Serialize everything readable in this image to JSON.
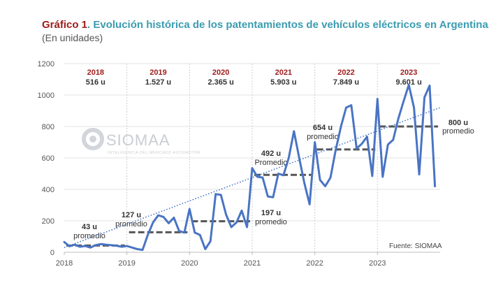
{
  "header": {
    "title_prefix": "Gráfico 1",
    "title_main": ". Evolución histórica de los patentamientos de vehículos eléctricos en Argentina.",
    "subtitle": "(En unidades)"
  },
  "watermark": {
    "name": "SIOMAA",
    "tagline": "INTELIGENCIA DEL MERCADO AUTOMOTOR"
  },
  "colors": {
    "line": "#4a74c4",
    "trend": "#3b6fc2",
    "average": "#555555",
    "year_label": "#a01c1c",
    "title_accent": "#3a9cb0",
    "grid": "#e3e3e3"
  },
  "chart_data": {
    "type": "line",
    "title": "",
    "xlabel": "",
    "ylabel": "",
    "ylim": [
      0,
      1200
    ],
    "yticks": [
      0,
      200,
      400,
      600,
      800,
      1000,
      1200
    ],
    "xlim": [
      2018,
      2024
    ],
    "xticks": [
      2018,
      2019,
      2020,
      2021,
      2022,
      2023
    ],
    "grid": true,
    "year_boxes": [
      {
        "year": "2018",
        "total": "516 u"
      },
      {
        "year": "2019",
        "total": "1.527 u"
      },
      {
        "year": "2020",
        "total": "2.365 u"
      },
      {
        "year": "2021",
        "total": "5.903 u"
      },
      {
        "year": "2022",
        "total": "7.849 u"
      },
      {
        "year": "2023",
        "total": "9.601 u"
      }
    ],
    "averages": [
      {
        "year": 2018,
        "value": 43,
        "label": "43 u",
        "note": "promedio"
      },
      {
        "year": 2019,
        "value": 127,
        "label": "127 u",
        "note": "promedio"
      },
      {
        "year": 2020,
        "value": 197,
        "label": "197 u",
        "note": "promedio"
      },
      {
        "year": 2021,
        "value": 492,
        "label": "492 u",
        "note": "Promedio"
      },
      {
        "year": 2022,
        "value": 654,
        "label": "654 u",
        "note": "promedio"
      },
      {
        "year": 2023,
        "value": 800,
        "label": "800 u",
        "note": "promedio"
      }
    ],
    "trend": {
      "from": [
        2018,
        30
      ],
      "to": [
        2024,
        920
      ]
    },
    "series": [
      {
        "values": [
          [
            2018.0,
            65
          ],
          [
            2018.083,
            38
          ],
          [
            2018.167,
            48
          ],
          [
            2018.25,
            35
          ],
          [
            2018.333,
            40
          ],
          [
            2018.417,
            30
          ],
          [
            2018.5,
            45
          ],
          [
            2018.583,
            52
          ],
          [
            2018.667,
            48
          ],
          [
            2018.75,
            45
          ],
          [
            2018.833,
            42
          ],
          [
            2018.917,
            35
          ],
          [
            2019.0,
            40
          ],
          [
            2019.083,
            30
          ],
          [
            2019.167,
            20
          ],
          [
            2019.25,
            15
          ],
          [
            2019.333,
            110
          ],
          [
            2019.417,
            190
          ],
          [
            2019.5,
            235
          ],
          [
            2019.583,
            225
          ],
          [
            2019.667,
            185
          ],
          [
            2019.75,
            220
          ],
          [
            2019.833,
            135
          ],
          [
            2019.917,
            125
          ],
          [
            2020.0,
            275
          ],
          [
            2020.083,
            125
          ],
          [
            2020.167,
            110
          ],
          [
            2020.25,
            20
          ],
          [
            2020.333,
            70
          ],
          [
            2020.417,
            370
          ],
          [
            2020.5,
            365
          ],
          [
            2020.583,
            240
          ],
          [
            2020.667,
            160
          ],
          [
            2020.75,
            190
          ],
          [
            2020.833,
            265
          ],
          [
            2020.917,
            160
          ],
          [
            2021.0,
            535
          ],
          [
            2021.083,
            480
          ],
          [
            2021.167,
            475
          ],
          [
            2021.25,
            355
          ],
          [
            2021.333,
            350
          ],
          [
            2021.417,
            500
          ],
          [
            2021.5,
            490
          ],
          [
            2021.583,
            600
          ],
          [
            2021.667,
            770
          ],
          [
            2021.75,
            600
          ],
          [
            2021.833,
            440
          ],
          [
            2021.917,
            305
          ],
          [
            2022.0,
            700
          ],
          [
            2022.083,
            460
          ],
          [
            2022.167,
            420
          ],
          [
            2022.25,
            475
          ],
          [
            2022.333,
            650
          ],
          [
            2022.417,
            800
          ],
          [
            2022.5,
            920
          ],
          [
            2022.583,
            935
          ],
          [
            2022.667,
            660
          ],
          [
            2022.75,
            690
          ],
          [
            2022.833,
            735
          ],
          [
            2022.917,
            485
          ],
          [
            2023.0,
            975
          ],
          [
            2023.083,
            480
          ],
          [
            2023.167,
            685
          ],
          [
            2023.25,
            715
          ],
          [
            2023.333,
            850
          ],
          [
            2023.417,
            960
          ],
          [
            2023.5,
            1065
          ],
          [
            2023.583,
            920
          ],
          [
            2023.667,
            495
          ],
          [
            2023.75,
            985
          ],
          [
            2023.833,
            1060
          ],
          [
            2023.917,
            420
          ]
        ]
      }
    ],
    "source": "Fuente: SIOMAA"
  }
}
